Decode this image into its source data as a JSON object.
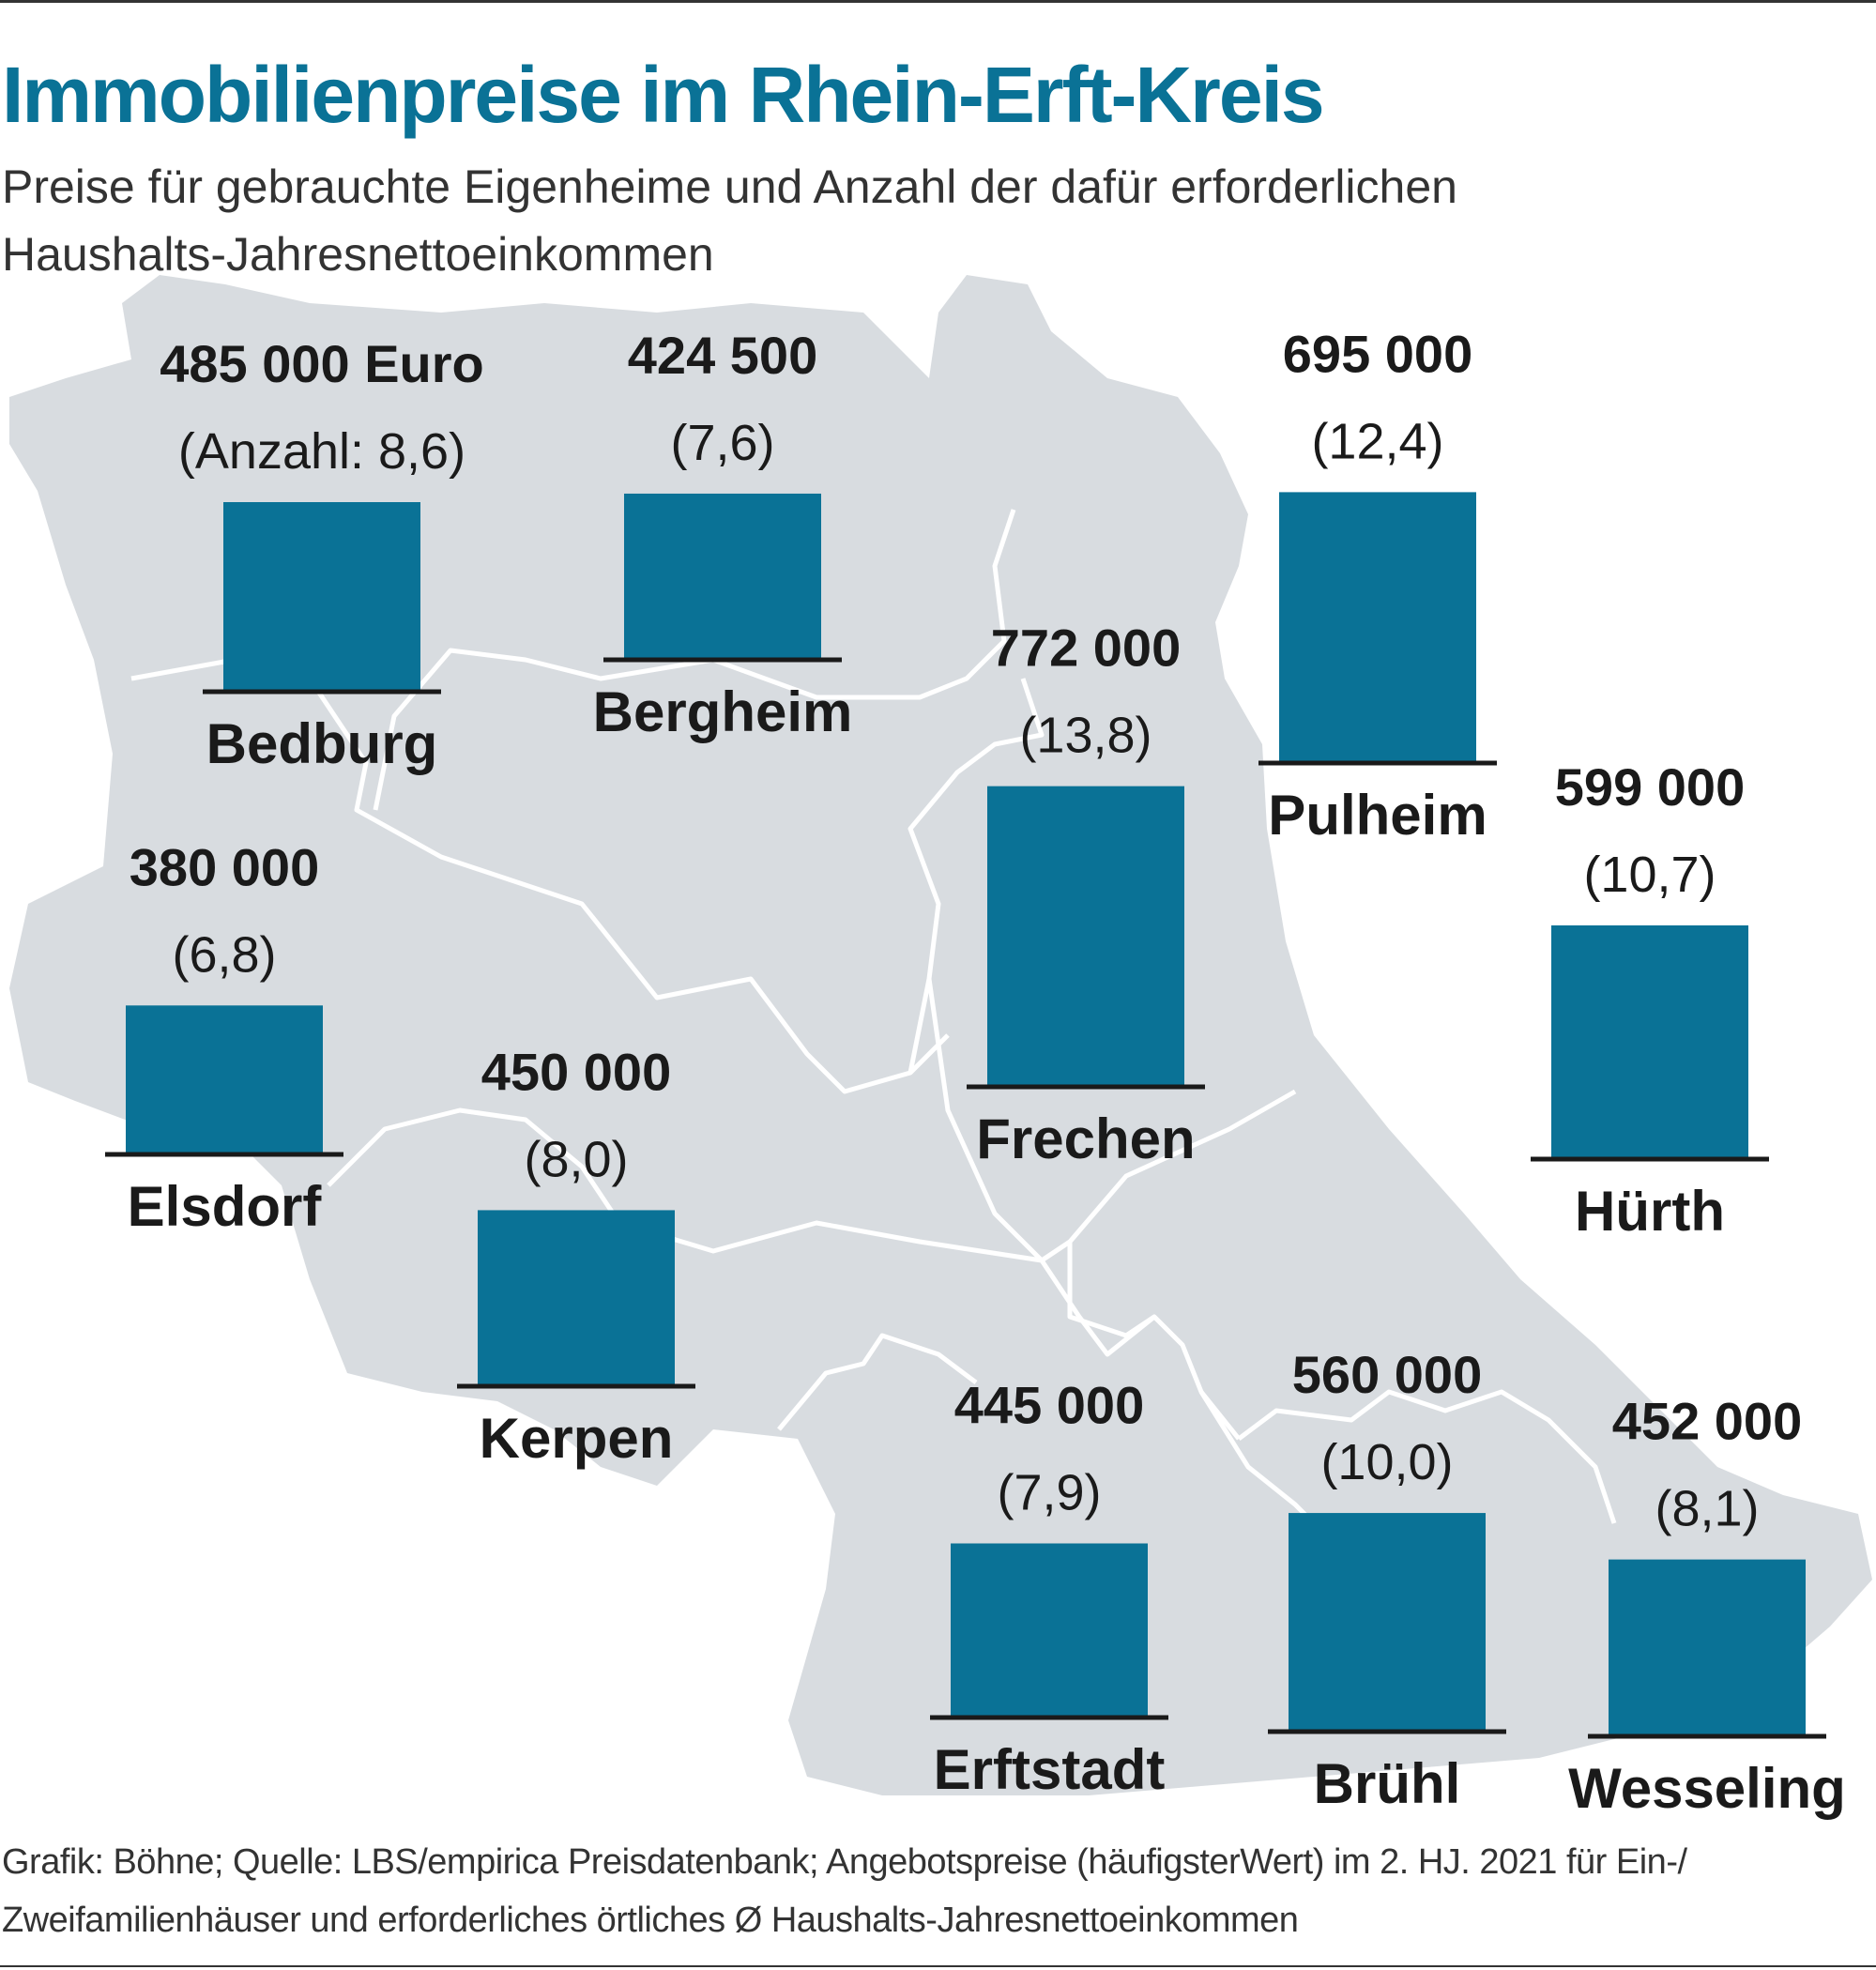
{
  "chart_data": {
    "type": "bar",
    "title": "Immobilienpreise im Rhein-Erft-Kreis",
    "subtitle": "Preise für gebrauchte Eigenheime und Anzahl der dafür erforderlichen Haushalts-Jahresnettoeinkommen",
    "categories": [
      "Bedburg",
      "Bergheim",
      "Pulheim",
      "Frechen",
      "Elsdorf",
      "Hürth",
      "Kerpen",
      "Erftstadt",
      "Brühl",
      "Wesseling"
    ],
    "value_labels": [
      "485 000 Euro",
      "424 500",
      "695 000",
      "772 000",
      "380 000",
      "599 000",
      "450 000",
      "445 000",
      "560 000",
      "452 000"
    ],
    "ratio_labels": [
      "(Anzahl: 8,6)",
      "(7,6)",
      "(12,4)",
      "(13,8)",
      "(6,8)",
      "(10,7)",
      "(8,0)",
      "(7,9)",
      "(10,0)",
      "(8,1)"
    ],
    "series": [
      {
        "values": [
          485000,
          424500,
          695000,
          772000,
          380000,
          599000,
          450000,
          445000,
          560000,
          452000
        ]
      }
    ],
    "ratios": [
      8.6,
      7.6,
      12.4,
      13.8,
      6.8,
      10.7,
      8.0,
      7.9,
      10.0,
      8.1
    ],
    "value_unit": "Euro",
    "bar_color": "#0a7296",
    "map_color": "#d8dce0",
    "border_color": "#ffffff"
  },
  "footer": {
    "source": "Grafik: Böhne; Quelle: LBS/empirica Preisdatenbank; Angebotspreise (häufigsterWert) im 2. HJ. 2021 für Ein-/ Zweifamilienhäuser und erforderliches örtliches Ø Haushalts-Jahresnettoeinkommen"
  }
}
